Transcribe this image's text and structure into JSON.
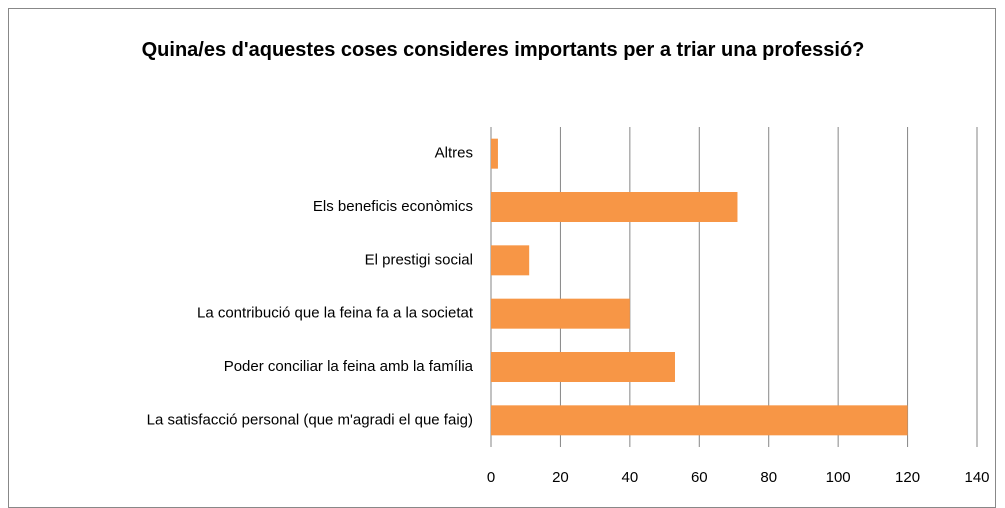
{
  "chart_data": {
    "type": "bar",
    "orientation": "horizontal",
    "title": "Quina/es d'aquestes coses consideres importants per a triar una professió?",
    "categories": [
      "Altres",
      "Els beneficis econòmics",
      "El prestigi social",
      "La contribució que la feina fa a la societat",
      "Poder conciliar la feina amb la família",
      "La satisfacció personal (que m'agradi el que faig)"
    ],
    "values": [
      2,
      71,
      11,
      40,
      53,
      120
    ],
    "color": "#f79646",
    "xlim": [
      0,
      140
    ],
    "xticks": [
      0,
      20,
      40,
      60,
      80,
      100,
      120,
      140
    ],
    "grid": true
  }
}
